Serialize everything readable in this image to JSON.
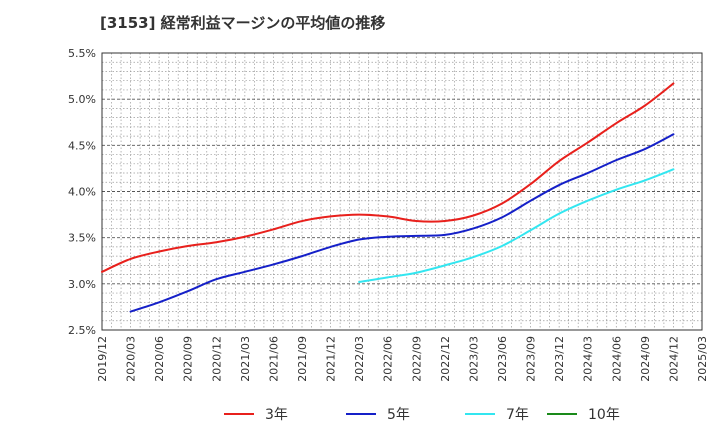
{
  "chart_data": {
    "type": "line",
    "title": "[3153]  経常利益マージンの平均値の推移",
    "xlabel": "",
    "ylabel": "",
    "ylim": [
      2.5,
      5.5
    ],
    "xlim": [
      "2019/12",
      "2025/03"
    ],
    "x_ticks": [
      "2019/12",
      "2020/03",
      "2020/06",
      "2020/09",
      "2020/12",
      "2021/03",
      "2021/06",
      "2021/09",
      "2021/12",
      "2022/03",
      "2022/06",
      "2022/09",
      "2022/12",
      "2023/03",
      "2023/06",
      "2023/09",
      "2023/12",
      "2024/03",
      "2024/06",
      "2024/09",
      "2024/12",
      "2025/03"
    ],
    "y_ticks": [
      {
        "value": 2.5,
        "label": "2.5%"
      },
      {
        "value": 3.0,
        "label": "3.0%"
      },
      {
        "value": 3.5,
        "label": "3.5%"
      },
      {
        "value": 4.0,
        "label": "4.0%"
      },
      {
        "value": 4.5,
        "label": "4.5%"
      },
      {
        "value": 5.0,
        "label": "5.0%"
      },
      {
        "value": 5.5,
        "label": "5.5%"
      }
    ],
    "grid": true,
    "legend_position": "bottom",
    "series": [
      {
        "name": "3年",
        "color": "#e8201c",
        "x": [
          "2019/12",
          "2020/03",
          "2020/06",
          "2020/09",
          "2020/12",
          "2021/03",
          "2021/06",
          "2021/09",
          "2021/12",
          "2022/03",
          "2022/06",
          "2022/09",
          "2022/12",
          "2023/03",
          "2023/06",
          "2023/09",
          "2023/12",
          "2024/03",
          "2024/06",
          "2024/09",
          "2024/12"
        ],
        "values": [
          3.13,
          3.27,
          3.35,
          3.41,
          3.45,
          3.51,
          3.59,
          3.68,
          3.73,
          3.75,
          3.73,
          3.68,
          3.68,
          3.74,
          3.87,
          4.08,
          4.33,
          4.53,
          4.74,
          4.93,
          5.17
        ]
      },
      {
        "name": "5年",
        "color": "#1520c8",
        "x": [
          "2020/03",
          "2020/06",
          "2020/09",
          "2020/12",
          "2021/03",
          "2021/06",
          "2021/09",
          "2021/12",
          "2022/03",
          "2022/06",
          "2022/09",
          "2022/12",
          "2023/03",
          "2023/06",
          "2023/09",
          "2023/12",
          "2024/03",
          "2024/06",
          "2024/09",
          "2024/12"
        ],
        "values": [
          2.7,
          2.8,
          2.92,
          3.05,
          3.13,
          3.21,
          3.3,
          3.4,
          3.48,
          3.51,
          3.52,
          3.53,
          3.6,
          3.72,
          3.9,
          4.07,
          4.2,
          4.34,
          4.46,
          4.62
        ]
      },
      {
        "name": "7年",
        "color": "#33e6f0",
        "x": [
          "2022/03",
          "2022/06",
          "2022/09",
          "2022/12",
          "2023/03",
          "2023/06",
          "2023/09",
          "2023/12",
          "2024/03",
          "2024/06",
          "2024/09",
          "2024/12"
        ],
        "values": [
          3.02,
          3.07,
          3.12,
          3.2,
          3.29,
          3.41,
          3.58,
          3.76,
          3.9,
          4.02,
          4.12,
          4.24
        ]
      },
      {
        "name": "10年",
        "color": "#1a8a1a",
        "x": [],
        "values": []
      }
    ]
  }
}
